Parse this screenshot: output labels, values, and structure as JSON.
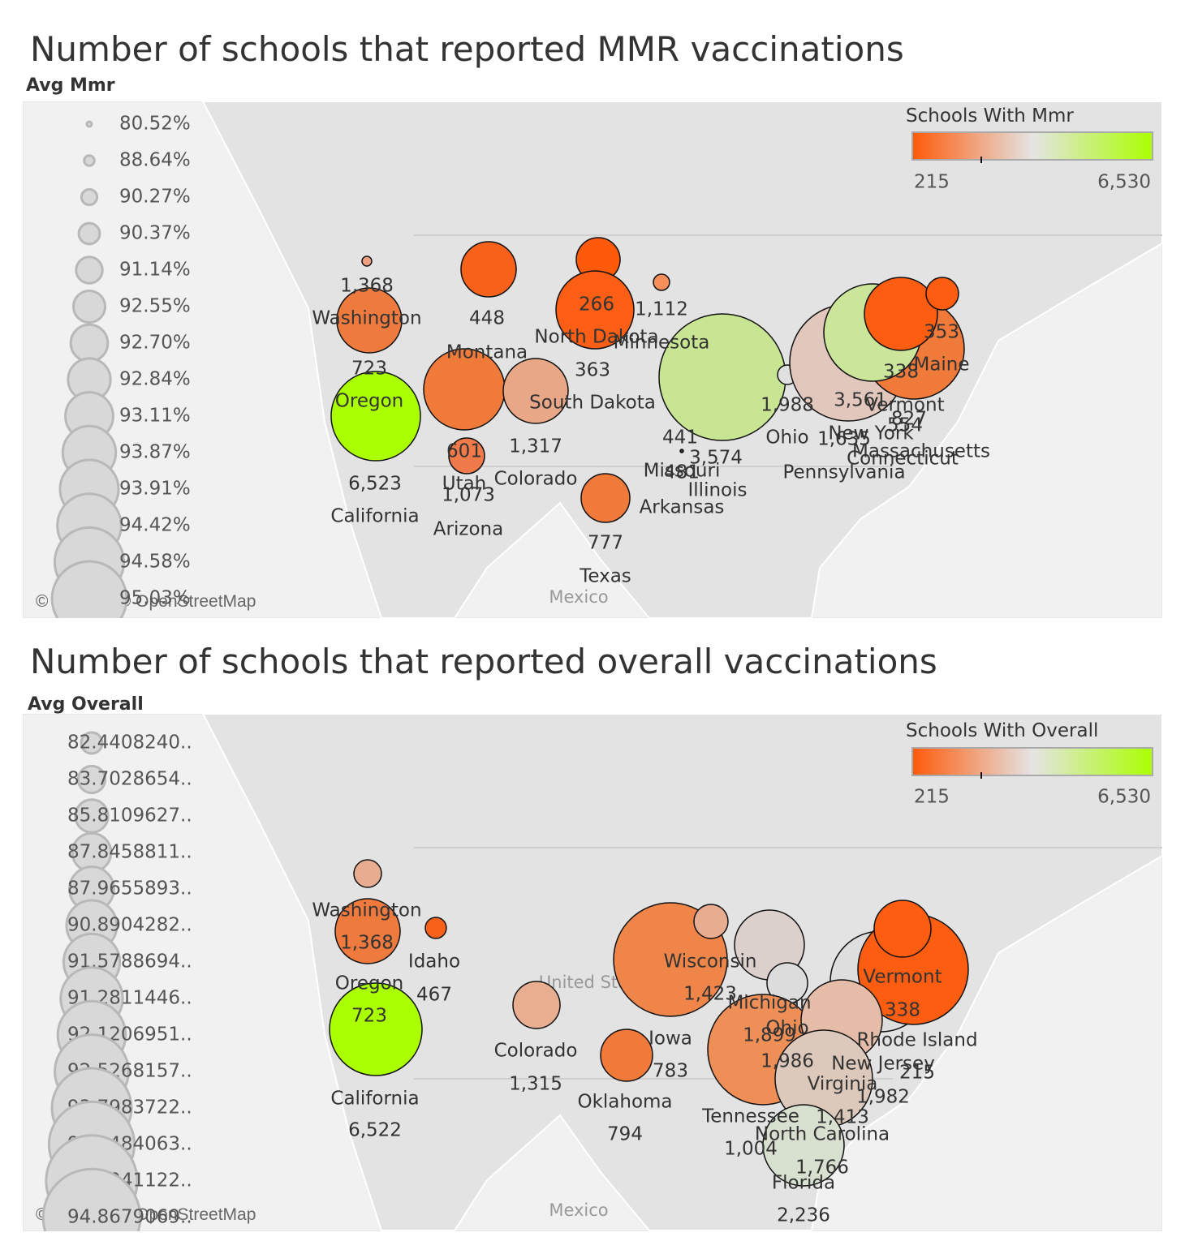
{
  "panels": [
    {
      "title": "Number of schools that reported MMR vaccinations",
      "size_legend": {
        "title": "Avg Mmr",
        "items": [
          "80.52%",
          "88.64%",
          "90.27%",
          "90.37%",
          "91.14%",
          "92.55%",
          "92.70%",
          "92.84%",
          "93.11%",
          "93.87%",
          "93.91%",
          "94.42%",
          "94.58%",
          "95.03%"
        ]
      },
      "color_legend": {
        "title": "Schools With Mmr",
        "min": "215",
        "max": "6,530",
        "colors": [
          "#fe5a0a",
          "#e4e4e4",
          "#aaff00"
        ]
      },
      "bubbles": [
        {
          "color": "#f0a080"
        },
        {
          "color": "#ef7a3e"
        },
        {
          "color": "#aaff00"
        },
        {
          "color": "#f8611a"
        },
        {
          "color": "#f07a3a"
        },
        {
          "color": "#e8a888"
        },
        {
          "color": "#f07a4a"
        },
        {
          "color": "#fe5a0a"
        },
        {
          "color": "#fb5e14"
        },
        {
          "color": "#f6905a"
        },
        {
          "color": "#f8611a"
        },
        {
          "color": "#333333"
        },
        {
          "color": "#c8e593"
        },
        {
          "color": "#f07a3a"
        },
        {
          "color": "#e0e0e0"
        },
        {
          "color": "#e2c8bc"
        },
        {
          "color": "#f07a3a"
        },
        {
          "color": "#cbe69a"
        },
        {
          "color": "#fd5d10"
        },
        {
          "color": "#fd5d10"
        }
      ],
      "labels": [
        "1,368",
        "Washington",
        "723",
        "Oregon",
        "6,523",
        "California",
        "448",
        "Montana",
        "601",
        "Utah",
        "1,073",
        "Arizona",
        "1,317",
        "Colorado",
        "266",
        "North Dakota",
        "363",
        "South Dakota",
        "1,112",
        "Minnesota",
        "441",
        "Missouri",
        "481",
        "3,574",
        "Illinois",
        "Arkansas",
        "777",
        "Texas",
        "1,988",
        "Ohio",
        "1,635",
        "Pennsylvania",
        "3,561",
        "New York",
        "353",
        "Maine",
        "338",
        "Vermont",
        "827",
        "Massachusetts",
        "554",
        "Connecticut"
      ],
      "attribution": "© Mapbox © OpenStreetMap",
      "places": [
        "Mexico"
      ]
    },
    {
      "title": "Number of schools that reported overall vaccinations",
      "size_legend": {
        "title": "Avg Overall",
        "items": [
          "82.4408240..",
          "83.7028654..",
          "85.8109627..",
          "87.8458811..",
          "87.9655893..",
          "90.8904282..",
          "91.5788694..",
          "91.2811446..",
          "92.1206951..",
          "92.5268157..",
          "93.7983722..",
          "94.9484063..",
          "94.1941122..",
          "94.8679069.."
        ]
      },
      "color_legend": {
        "title": "Schools With Overall",
        "min": "215",
        "max": "6,530",
        "colors": [
          "#fe5a0a",
          "#e4e4e4",
          "#aaff00"
        ]
      },
      "bubbles": [
        {
          "color": "#e8ac90"
        },
        {
          "color": "#ef7a3e"
        },
        {
          "color": "#aaff00"
        },
        {
          "color": "#f8611a"
        },
        {
          "color": "#e9ad90"
        },
        {
          "color": "#f07a3a"
        },
        {
          "color": "#ef8548"
        },
        {
          "color": "#e8ac90"
        },
        {
          "color": "#dcd0cc"
        },
        {
          "color": "#dcdcdc"
        },
        {
          "color": "#ef8f58"
        },
        {
          "color": "#dedede"
        },
        {
          "color": "#fd5d10"
        },
        {
          "color": "#fd5d10"
        },
        {
          "color": "#e4bca8"
        },
        {
          "color": "#ddc8bc"
        },
        {
          "color": "#d8e0d0"
        }
      ],
      "labels": [
        "Washington",
        "1,368",
        "Oregon",
        "723",
        "California",
        "6,522",
        "Idaho",
        "467",
        "Colorado",
        "1,315",
        "Iowa",
        "783",
        "Oklahoma",
        "794",
        "Wisconsin",
        "1,423",
        "Michigan",
        "1,899",
        "Ohio",
        "1,986",
        "Virginia",
        "1,413",
        "Tennessee",
        "1,004",
        "North Carolina",
        "1,766",
        "Florida",
        "2,236",
        "New Jersey",
        "1,982",
        "Rhode Island",
        "215",
        "Vermont",
        "338"
      ],
      "attribution": "© Mapbox © OpenStreetMap",
      "places": [
        "Mexico",
        "United States"
      ]
    }
  ]
}
